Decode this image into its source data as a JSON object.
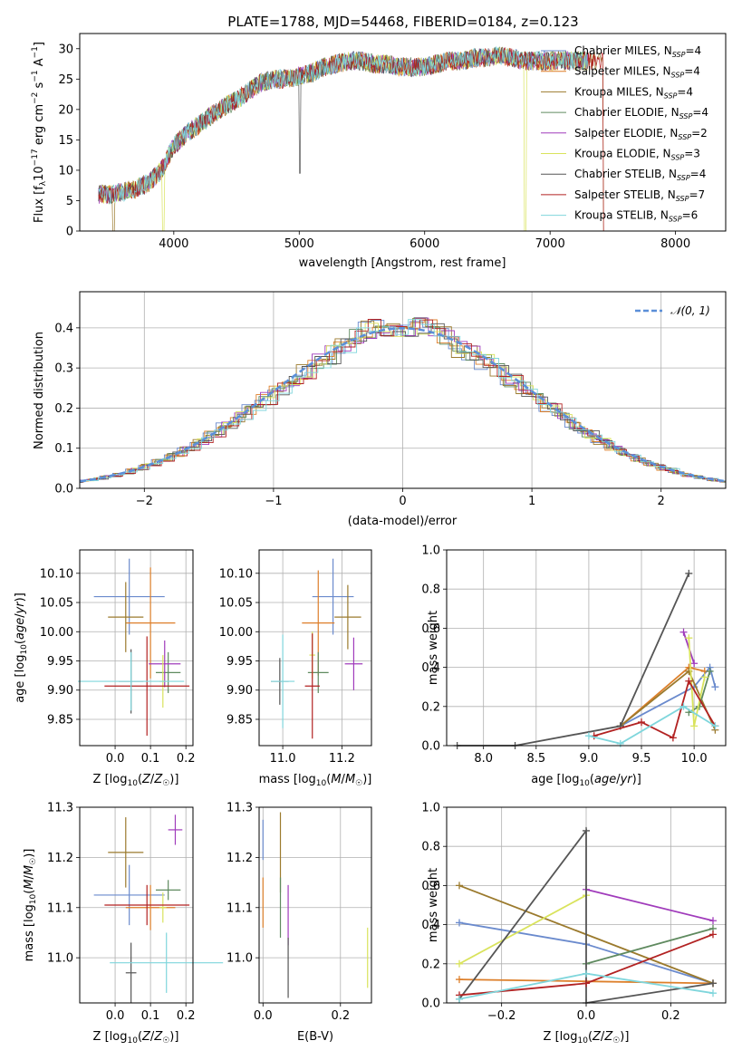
{
  "title": "PLATE=1788, MJD=54468, FIBERID=0184, z=0.123",
  "colors": [
    "#6a8acd",
    "#dd7f2a",
    "#9b7a2d",
    "#5f8a5f",
    "#a03bbb",
    "#d9e35c",
    "#555555",
    "#b22222",
    "#7fd6dc"
  ],
  "models": [
    {
      "imf": "Chabrier",
      "lib": "MILES",
      "nssp": "4"
    },
    {
      "imf": "Salpeter",
      "lib": "MILES",
      "nssp": "4"
    },
    {
      "imf": "Kroupa",
      "lib": "MILES",
      "nssp": "4"
    },
    {
      "imf": "Chabrier",
      "lib": "ELODIE",
      "nssp": "4"
    },
    {
      "imf": "Salpeter",
      "lib": "ELODIE",
      "nssp": "2"
    },
    {
      "imf": "Kroupa",
      "lib": "ELODIE",
      "nssp": "3"
    },
    {
      "imf": "Chabrier",
      "lib": "STELIB",
      "nssp": "4"
    },
    {
      "imf": "Salpeter",
      "lib": "STELIB",
      "nssp": "7"
    },
    {
      "imf": "Kroupa",
      "lib": "STELIB",
      "nssp": "6"
    }
  ],
  "chart_data": [
    {
      "type": "line",
      "xlabel": "wavelength [Angstrom, rest frame]",
      "ylabel": "Flux [f",
      "xlim": [
        3250,
        8400
      ],
      "ylim": [
        0,
        32.5
      ],
      "xticks": [
        "4000",
        "5000",
        "6000",
        "7000",
        "8000"
      ],
      "yticks": [
        "0",
        "5",
        "10",
        "15",
        "20",
        "25",
        "30"
      ],
      "legend": "right",
      "spectrum_x": [
        3400,
        3500,
        3600,
        3700,
        3800,
        3900,
        4000,
        4100,
        4200,
        4300,
        4400,
        4500,
        4600,
        4700,
        4800,
        4900,
        5000,
        5100,
        5200,
        5300,
        5400,
        5500,
        5600,
        5700,
        5800,
        5900,
        6000,
        6100,
        6200,
        6300,
        6400,
        6500,
        6600,
        6700,
        6800,
        6900,
        7000,
        7100,
        7200,
        7300
      ],
      "spectrum_y": [
        6,
        6,
        6.5,
        7,
        8,
        10,
        14,
        16,
        17.5,
        19,
        20.5,
        21.5,
        23,
        24.5,
        25,
        25,
        25.5,
        26,
        27,
        27.5,
        28,
        28,
        27.5,
        27.5,
        27,
        27,
        27,
        27.5,
        28,
        28,
        28.5,
        28.5,
        29,
        28.5,
        28,
        28,
        28,
        28,
        28,
        28
      ]
    },
    {
      "type": "line",
      "xlabel": "(data-model)/error",
      "ylabel": "Normed distribution",
      "xlim": [
        -2.5,
        2.5
      ],
      "ylim": [
        0,
        0.49
      ],
      "xticks": [
        "−2",
        "−1",
        "0",
        "1",
        "2"
      ],
      "yticks": [
        "0.0",
        "0.1",
        "0.2",
        "0.3",
        "0.4"
      ],
      "legend_label": "𝒩(0, 1)",
      "legend": "top-right"
    },
    {
      "type": "scatter",
      "xlabel": "Z [log",
      "ylabel": "age  [log",
      "xlim": [
        -0.1,
        0.22
      ],
      "ylim": [
        9.805,
        10.14
      ],
      "xticks": [
        "0.0",
        "0.1",
        "0.2"
      ],
      "yticks": [
        "9.85",
        "9.90",
        "9.95",
        "10.00",
        "10.05",
        "10.10"
      ],
      "points": [
        {
          "x": 0.04,
          "y": 10.06,
          "xerr": 0.1,
          "yerr": 0.065
        },
        {
          "x": 0.1,
          "y": 10.015,
          "xerr": 0.07,
          "yerr": 0.095
        },
        {
          "x": 0.03,
          "y": 10.025,
          "xerr": 0.05,
          "yerr": 0.06
        },
        {
          "x": 0.15,
          "y": 9.93,
          "xerr": 0.035,
          "yerr": 0.035
        },
        {
          "x": 0.14,
          "y": 9.945,
          "xerr": 0.045,
          "yerr": 0.04
        },
        {
          "x": 0.135,
          "y": 9.915,
          "xerr": 0.01,
          "yerr": 0.045
        },
        {
          "x": 0.045,
          "y": 9.915,
          "xerr": 0.035,
          "yerr": 0.055
        },
        {
          "x": 0.09,
          "y": 9.907,
          "xerr": 0.12,
          "yerr": 0.085
        },
        {
          "x": 0.045,
          "y": 9.915,
          "xerr": 0.15,
          "yerr": 0.05
        }
      ]
    },
    {
      "type": "scatter",
      "xlabel": "mass [log",
      "ylabel": "",
      "xlim": [
        10.92,
        11.3
      ],
      "ylim": [
        9.805,
        10.14
      ],
      "xticks": [
        "11.0",
        "11.2"
      ],
      "yticks": [
        "9.85",
        "9.90",
        "9.95",
        "10.00",
        "10.05",
        "10.10"
      ],
      "points": [
        {
          "x": 11.17,
          "y": 10.06,
          "xerr": 0.07,
          "yerr": 0.065
        },
        {
          "x": 11.12,
          "y": 10.015,
          "xerr": 0.055,
          "yerr": 0.09
        },
        {
          "x": 11.22,
          "y": 10.025,
          "xerr": 0.045,
          "yerr": 0.055
        },
        {
          "x": 11.12,
          "y": 9.93,
          "xerr": 0.035,
          "yerr": 0.035
        },
        {
          "x": 11.24,
          "y": 9.945,
          "xerr": 0.03,
          "yerr": 0.045
        },
        {
          "x": 11.1,
          "y": 9.96,
          "xerr": 0.01,
          "yerr": 0.04
        },
        {
          "x": 10.99,
          "y": 9.915,
          "xerr": 0.03,
          "yerr": 0.04
        },
        {
          "x": 11.1,
          "y": 9.907,
          "xerr": 0.025,
          "yerr": 0.09
        },
        {
          "x": 11.0,
          "y": 9.915,
          "xerr": 0.04,
          "yerr": 0.08
        }
      ]
    },
    {
      "type": "line",
      "xlabel": "age  [log",
      "ylabel": "mass weight",
      "xlim": [
        7.65,
        10.3
      ],
      "ylim": [
        0,
        1.0
      ],
      "xticks": [
        "8.0",
        "8.5",
        "9.0",
        "9.5",
        "10.0"
      ],
      "yticks": [
        "0.0",
        "0.2",
        "0.4",
        "0.6",
        "0.8",
        "1.0"
      ],
      "series": [
        {
          "x": [
            9.3,
            10.0,
            10.15,
            10.2
          ],
          "y": [
            0.1,
            0.3,
            0.4,
            0.3
          ]
        },
        {
          "x": [
            9.3,
            9.95,
            10.1
          ],
          "y": [
            0.1,
            0.4,
            0.38
          ]
        },
        {
          "x": [
            9.3,
            9.95,
            10.2
          ],
          "y": [
            0.1,
            0.38,
            0.08
          ]
        },
        {
          "x": [
            9.95,
            10.05,
            10.15
          ],
          "y": [
            0.17,
            0.2,
            0.38
          ]
        },
        {
          "x": [
            9.9,
            10.0
          ],
          "y": [
            0.58,
            0.42
          ]
        },
        {
          "x": [
            9.95,
            10.0,
            10.1
          ],
          "y": [
            0.55,
            0.1,
            0.35
          ]
        },
        {
          "x": [
            7.75,
            8.3,
            9.3,
            9.95
          ],
          "y": [
            0.0,
            0.0,
            0.1,
            0.88
          ]
        },
        {
          "x": [
            9.05,
            9.5,
            9.8,
            9.95,
            10.2
          ],
          "y": [
            0.05,
            0.12,
            0.04,
            0.33,
            0.1
          ]
        },
        {
          "x": [
            9.0,
            9.3,
            9.9,
            10.2
          ],
          "y": [
            0.05,
            0.01,
            0.2,
            0.1
          ]
        }
      ]
    },
    {
      "type": "scatter",
      "xlabel": "Z [log",
      "ylabel": "mass [log",
      "xlim": [
        -0.1,
        0.22
      ],
      "ylim": [
        10.91,
        11.3
      ],
      "xticks": [
        "0.0",
        "0.1",
        "0.2"
      ],
      "yticks": [
        "11.0",
        "11.1",
        "11.2",
        "11.3"
      ],
      "points": [
        {
          "x": 0.04,
          "y": 11.125,
          "xerr": 0.1,
          "yerr": 0.06
        },
        {
          "x": 0.1,
          "y": 11.1,
          "xerr": 0.07,
          "yerr": 0.045
        },
        {
          "x": 0.03,
          "y": 11.21,
          "xerr": 0.05,
          "yerr": 0.07
        },
        {
          "x": 0.15,
          "y": 11.135,
          "xerr": 0.035,
          "yerr": 0.02
        },
        {
          "x": 0.17,
          "y": 11.255,
          "xerr": 0.02,
          "yerr": 0.03
        },
        {
          "x": 0.135,
          "y": 11.1,
          "xerr": 0.01,
          "yerr": 0.03
        },
        {
          "x": 0.045,
          "y": 10.97,
          "xerr": 0.015,
          "yerr": 0.06
        },
        {
          "x": 0.09,
          "y": 11.105,
          "xerr": 0.12,
          "yerr": 0.04
        },
        {
          "x": 0.145,
          "y": 10.99,
          "xerr": 0.16,
          "yerr": 0.06
        }
      ]
    },
    {
      "type": "scatter",
      "xlabel": "E(B-V)",
      "ylabel": "",
      "xlim": [
        -0.01,
        0.28
      ],
      "ylim": [
        10.91,
        11.3
      ],
      "xticks": [
        "0.0",
        "0.2"
      ],
      "yticks": [
        "11.0",
        "11.1",
        "11.2",
        "11.3"
      ],
      "points": [
        {
          "x": 0.0,
          "y": 11.235,
          "yerr": 0.04
        },
        {
          "x": 0.0,
          "y": 11.11,
          "yerr": 0.05
        },
        {
          "x": 0.045,
          "y": 11.21,
          "yerr": 0.08
        },
        {
          "x": 0.045,
          "y": 11.1,
          "yerr": 0.06
        },
        {
          "x": 0.065,
          "y": 11.085,
          "yerr": 0.06
        },
        {
          "x": 0.27,
          "y": 11.0,
          "yerr": 0.06
        },
        {
          "x": 0.065,
          "y": 10.98,
          "yerr": 0.06
        }
      ]
    },
    {
      "type": "line",
      "xlabel": "Z [log",
      "ylabel": "mass weight",
      "xlim": [
        -0.33,
        0.33
      ],
      "ylim": [
        0,
        1.0
      ],
      "xticks": [
        "−0.2",
        "0.0",
        "0.2"
      ],
      "yticks": [
        "0.0",
        "0.2",
        "0.4",
        "0.6",
        "0.8",
        "1.0"
      ],
      "series": [
        {
          "x": [
            -0.3,
            0.0,
            0.3
          ],
          "y": [
            0.41,
            0.3,
            0.1
          ]
        },
        {
          "x": [
            -0.3,
            0.0,
            0.3
          ],
          "y": [
            0.12,
            0.11,
            0.1
          ]
        },
        {
          "x": [
            -0.3,
            0.3
          ],
          "y": [
            0.6,
            0.1
          ]
        },
        {
          "x": [
            0.0,
            0.3
          ],
          "y": [
            0.2,
            0.38
          ]
        },
        {
          "x": [
            0.0,
            0.3
          ],
          "y": [
            0.58,
            0.42
          ]
        },
        {
          "x": [
            -0.3,
            0.0
          ],
          "y": [
            0.2,
            0.55
          ]
        },
        {
          "x": [
            -0.3,
            0.0,
            0.0,
            0.3
          ],
          "y": [
            0.02,
            0.88,
            0.0,
            0.1
          ]
        },
        {
          "x": [
            -0.3,
            0.0,
            0.3
          ],
          "y": [
            0.04,
            0.1,
            0.35
          ]
        },
        {
          "x": [
            -0.3,
            0.0,
            0.3
          ],
          "y": [
            0.02,
            0.15,
            0.05
          ]
        }
      ]
    }
  ]
}
